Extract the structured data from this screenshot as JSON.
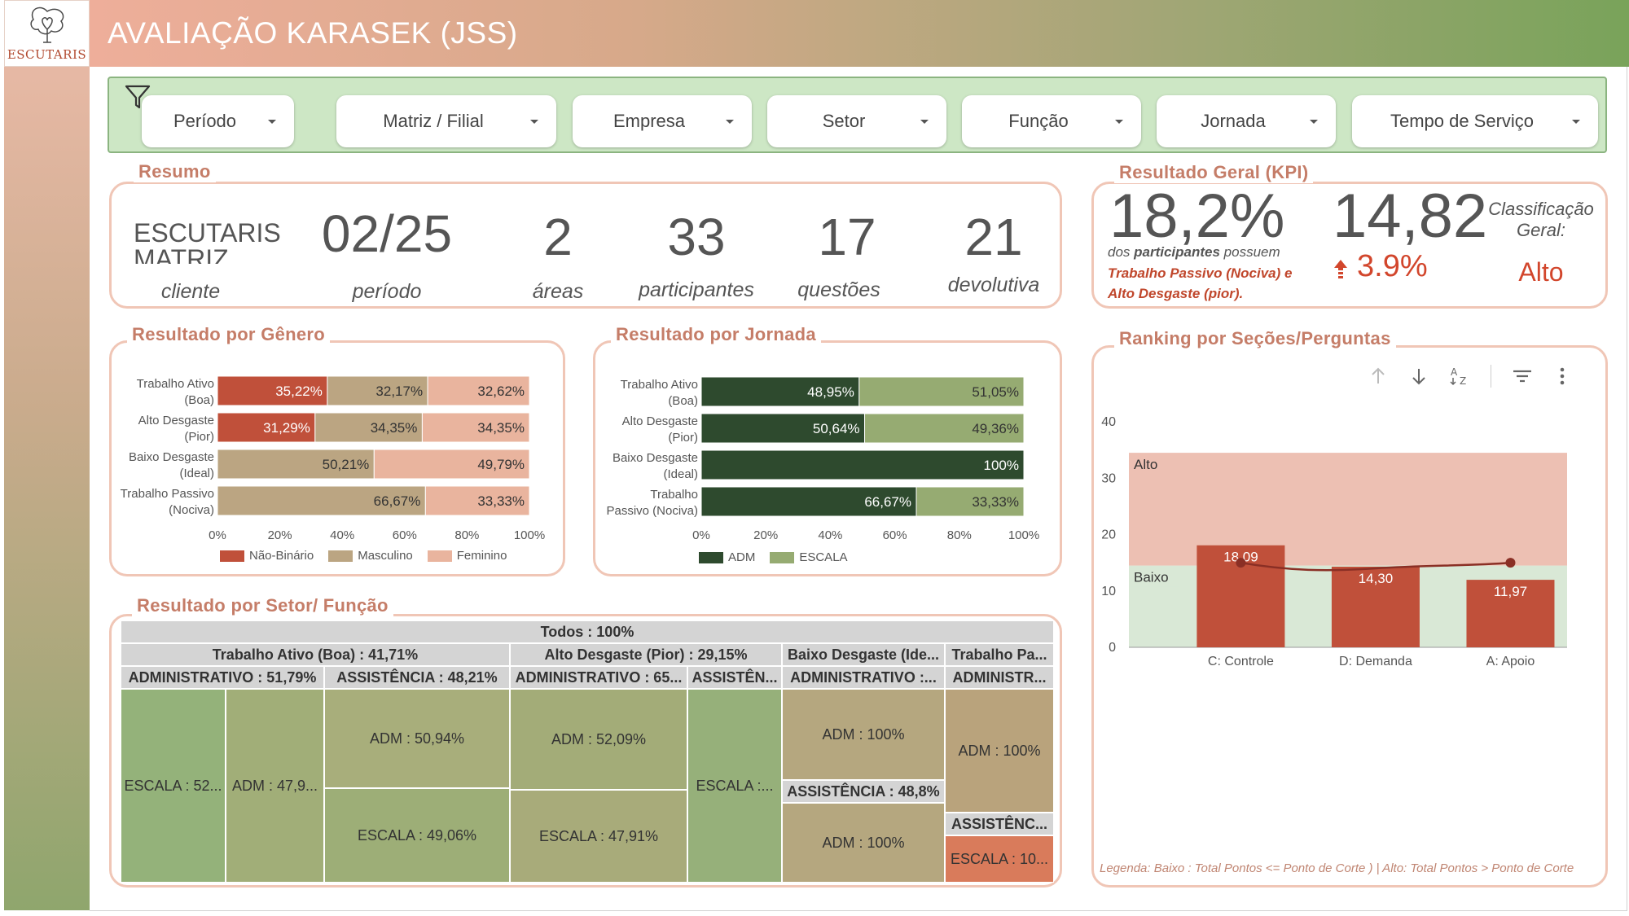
{
  "header": {
    "title": "AVALIAÇÃO KARASEK (JSS)",
    "logo_text": "ESCUTARIS"
  },
  "filters": [
    {
      "label": "Período"
    },
    {
      "label": "Matriz / Filial"
    },
    {
      "label": "Empresa"
    },
    {
      "label": "Setor"
    },
    {
      "label": "Função"
    },
    {
      "label": "Jornada"
    },
    {
      "label": "Tempo de Serviço"
    }
  ],
  "resumo": {
    "title": "Resumo",
    "client_name_line1": "ESCUTARIS",
    "client_name_line2": "MATRIZ",
    "client_label": "cliente",
    "periodo_value": "02/25",
    "periodo_label": "período",
    "areas_value": "2",
    "areas_label": "áreas",
    "participantes_value": "33",
    "participantes_label": "participantes",
    "questoes_value": "17",
    "questoes_label": "questões",
    "devolutiva_value": "21",
    "devolutiva_label": "devolutiva"
  },
  "kpi": {
    "title": "Resultado Geral (KPI)",
    "percent": "18,2%",
    "desc_prefix": "dos ",
    "desc_bold": "participantes",
    "desc_suffix": " possuem",
    "desc_line2": "Trabalho Passivo (Nociva) e",
    "desc_line3": "Alto Desgaste (pior).",
    "score": "14,82",
    "delta": "3.9%",
    "class_label_line1": "Classificação",
    "class_label_line2": "Geral:",
    "class_value": "Alto"
  },
  "chart_data": [
    {
      "type": "bar",
      "title": "Resultado por Gênero",
      "orientation": "horizontal-stacked-100",
      "categories": [
        [
          "Trabalho Ativo",
          "(Boa)"
        ],
        [
          "Alto Desgaste",
          "(Pior)"
        ],
        [
          "Baixo Desgaste",
          "(Ideal)"
        ],
        [
          "Trabalho Passivo",
          "(Nociva)"
        ]
      ],
      "series": [
        {
          "name": "Não-Binário",
          "color": "#c0503a",
          "values": [
            35.22,
            31.29,
            0,
            0
          ],
          "labels": [
            "35,22%",
            "31,29%",
            "",
            ""
          ]
        },
        {
          "name": "Masculino",
          "color": "#bba582",
          "values": [
            32.17,
            34.35,
            50.21,
            66.67
          ],
          "labels": [
            "32,17%",
            "34,35%",
            "50,21%",
            "66,67%"
          ]
        },
        {
          "name": "Feminino",
          "color": "#e9b49e",
          "values": [
            32.62,
            34.35,
            49.79,
            33.33
          ],
          "labels": [
            "32,62%",
            "34,35%",
            "49,79%",
            "33,33%"
          ]
        }
      ],
      "ticks": [
        "0%",
        "20%",
        "40%",
        "60%",
        "80%",
        "100%"
      ],
      "legend": "bottom"
    },
    {
      "type": "bar",
      "title": "Resultado por Jornada",
      "orientation": "horizontal-stacked-100",
      "categories": [
        [
          "Trabalho Ativo",
          "(Boa)"
        ],
        [
          "Alto Desgaste",
          "(Pior)"
        ],
        [
          "Baixo Desgaste",
          "(Ideal)"
        ],
        [
          "Trabalho",
          "Passivo (Nociva)"
        ]
      ],
      "series": [
        {
          "name": "ADM",
          "color": "#2e4a2e",
          "values": [
            48.95,
            50.64,
            100,
            66.67
          ],
          "labels": [
            "48,95%",
            "50,64%",
            "100%",
            "66,67%"
          ]
        },
        {
          "name": "ESCALA",
          "color": "#96ab72",
          "values": [
            51.05,
            49.36,
            0,
            33.33
          ],
          "labels": [
            "51,05%",
            "49,36%",
            "",
            "33,33%"
          ]
        }
      ],
      "ticks": [
        "0%",
        "20%",
        "40%",
        "60%",
        "80%",
        "100%"
      ],
      "legend": "bottom"
    },
    {
      "type": "bar",
      "title": "Ranking por Seções/Perguntas",
      "categories": [
        "C: Controle",
        "D: Demanda",
        "A: Apoio"
      ],
      "values": [
        18.09,
        14.3,
        11.97
      ],
      "value_labels": [
        "18,09",
        "14,30",
        "11,97"
      ],
      "line_values": [
        15.0,
        14.0,
        15.0
      ],
      "ylim": [
        0,
        40
      ],
      "yticks": [
        "0",
        "10",
        "20",
        "30",
        "40"
      ],
      "bands": [
        {
          "label": "Baixo",
          "from": 0,
          "to": 14.5,
          "color": "#d9e8d6"
        },
        {
          "label": "Alto",
          "from": 14.5,
          "to": 34.5,
          "color": "#edc0b3"
        }
      ],
      "bar_color": "#c0503a",
      "line_color": "#8a2f25"
    }
  ],
  "ranking": {
    "legend_text": "Legenda:  Baixo : Total Pontos  <= Ponto de Corte ) | Alto: Total Pontos > Ponto de Corte"
  },
  "setor": {
    "title": "Resultado por Setor/ Função",
    "root": "Todos : 100%",
    "level1": [
      "Trabalho Ativo (Boa) : 41,71%",
      "Alto Desgaste (Pior) : 29,15%",
      "Baixo Desgaste (Ide...",
      "Trabalho Pa..."
    ],
    "level2": [
      "ADMINISTRATIVO : 51,79%",
      "ASSISTÊNCIA : 48,21%",
      "ADMINISTRATIVO : 65...",
      "ASSISTÊN...",
      "ADMINISTRATIVO :...",
      "ADMINISTR..."
    ],
    "cells": [
      "ESCALA : 52...",
      "ADM : 47,9...",
      "ADM : 50,94%",
      "ESCALA : 49,06%",
      "ADM : 52,09%",
      "ESCALA : 47,91%",
      "ESCALA :...",
      "ADM : 100%",
      "ASSISTÊNCIA : 48,8%",
      "ADM : 100%",
      "ADM : 100%",
      "ASSISTÊNC...",
      "ESCALA : 10..."
    ]
  }
}
